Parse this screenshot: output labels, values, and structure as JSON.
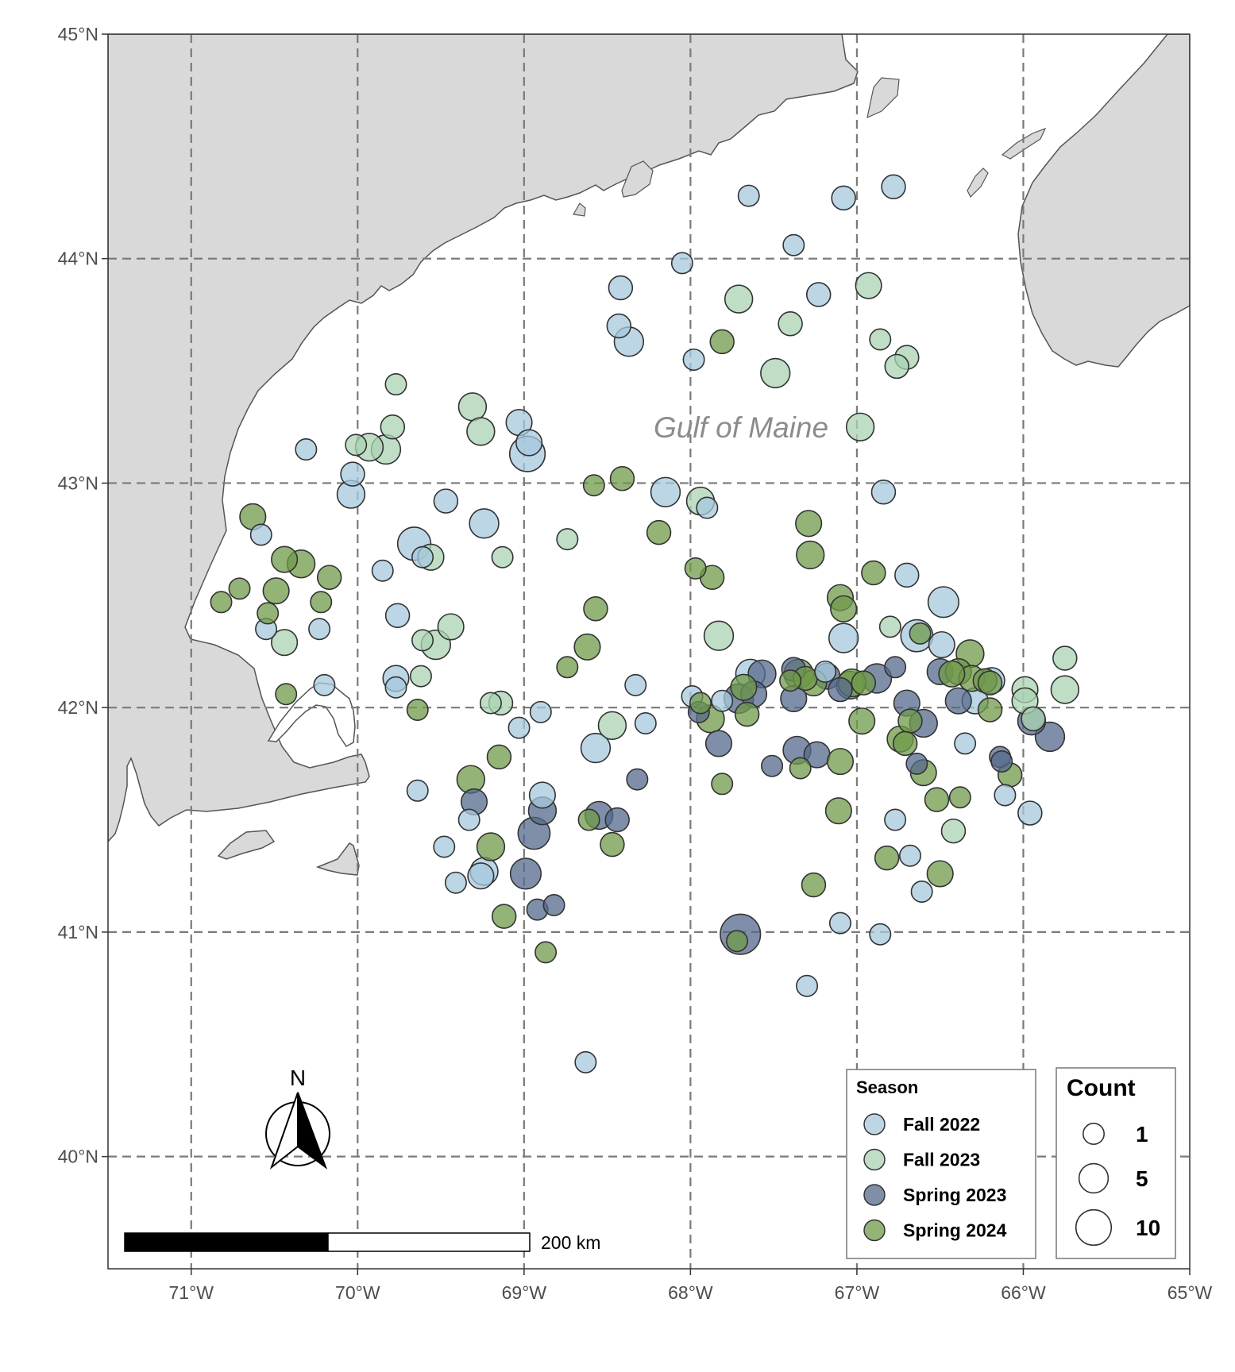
{
  "map": {
    "region_label": "Gulf of Maine",
    "lon_ticks": [
      "71°W",
      "70°W",
      "69°W",
      "68°W",
      "67°W",
      "66°W",
      "65°W"
    ],
    "lat_ticks": [
      "45°N",
      "44°N",
      "43°N",
      "42°N",
      "41°N",
      "40°N"
    ],
    "land_color": "#d9d9d9",
    "north_arrow_label": "N",
    "scale_bar_label": "200 km"
  },
  "legend": {
    "season_title": "Season",
    "seasons": [
      {
        "label": "Fall 2022",
        "color": "#a6c8dd"
      },
      {
        "label": "Fall 2023",
        "color": "#a9d3b2"
      },
      {
        "label": "Spring 2023",
        "color": "#55698c"
      },
      {
        "label": "Spring 2024",
        "color": "#6f9a4a"
      }
    ],
    "count_title": "Count",
    "counts": [
      {
        "label": "1",
        "value": 1
      },
      {
        "label": "5",
        "value": 5
      },
      {
        "label": "10",
        "value": 10
      }
    ]
  },
  "chart_data": {
    "type": "scatter",
    "x_label": "",
    "y_label": "",
    "xlim": [
      -71.5,
      -65.0
    ],
    "ylim": [
      39.5,
      45.0
    ],
    "series": [
      {
        "name": "Fall 2022",
        "points": [
          [
            -67.65,
            44.28,
            1
          ],
          [
            -67.08,
            44.27,
            2
          ],
          [
            -66.78,
            44.32,
            2
          ],
          [
            -67.38,
            44.06,
            1
          ],
          [
            -68.05,
            43.98,
            1
          ],
          [
            -68.42,
            43.87,
            2
          ],
          [
            -67.23,
            43.84,
            2
          ],
          [
            -68.43,
            43.7,
            2
          ],
          [
            -68.37,
            43.63,
            5
          ],
          [
            -67.98,
            43.55,
            1
          ],
          [
            -69.03,
            43.27,
            3
          ],
          [
            -68.98,
            43.13,
            10
          ],
          [
            -68.97,
            43.18,
            3
          ],
          [
            -70.31,
            43.15,
            1
          ],
          [
            -70.03,
            43.04,
            2
          ],
          [
            -70.04,
            42.95,
            4
          ],
          [
            -68.15,
            42.96,
            5
          ],
          [
            -67.9,
            42.89,
            1
          ],
          [
            -69.47,
            42.92,
            2
          ],
          [
            -69.24,
            42.82,
            5
          ],
          [
            -66.84,
            42.96,
            2
          ],
          [
            -69.66,
            42.73,
            8
          ],
          [
            -70.58,
            42.77,
            1
          ],
          [
            -69.85,
            42.61,
            1
          ],
          [
            -69.61,
            42.67,
            1
          ],
          [
            -70.55,
            42.35,
            1
          ],
          [
            -70.23,
            42.35,
            1
          ],
          [
            -69.76,
            42.41,
            2
          ],
          [
            -67.08,
            42.31,
            5
          ],
          [
            -66.64,
            42.32,
            7
          ],
          [
            -66.48,
            42.47,
            6
          ],
          [
            -66.7,
            42.59,
            2
          ],
          [
            -66.49,
            42.28,
            3
          ],
          [
            -67.64,
            42.15,
            5
          ],
          [
            -67.19,
            42.16,
            1
          ],
          [
            -66.29,
            42.03,
            3
          ],
          [
            -66.19,
            42.12,
            3
          ],
          [
            -67.81,
            42.03,
            1
          ],
          [
            -69.77,
            42.13,
            3
          ],
          [
            -70.2,
            42.1,
            1
          ],
          [
            -69.77,
            42.09,
            1
          ],
          [
            -67.99,
            42.05,
            1
          ],
          [
            -68.33,
            42.1,
            1
          ],
          [
            -68.57,
            41.82,
            5
          ],
          [
            -68.9,
            41.98,
            1
          ],
          [
            -69.03,
            41.91,
            1
          ],
          [
            -68.27,
            41.93,
            1
          ],
          [
            -66.35,
            41.84,
            1
          ],
          [
            -69.64,
            41.63,
            1
          ],
          [
            -68.89,
            41.61,
            3
          ],
          [
            -69.33,
            41.5,
            1
          ],
          [
            -69.48,
            41.38,
            1
          ],
          [
            -69.24,
            41.27,
            4
          ],
          [
            -69.26,
            41.25,
            3
          ],
          [
            -69.41,
            41.22,
            1
          ],
          [
            -66.77,
            41.5,
            1
          ],
          [
            -66.68,
            41.34,
            1
          ],
          [
            -66.61,
            41.18,
            1
          ],
          [
            -66.11,
            41.61,
            1
          ],
          [
            -65.96,
            41.53,
            2
          ],
          [
            -67.1,
            41.04,
            1
          ],
          [
            -66.86,
            40.99,
            1
          ],
          [
            -67.3,
            40.76,
            1
          ],
          [
            -68.63,
            40.42,
            1
          ]
        ]
      },
      {
        "name": "Fall 2023",
        "points": [
          [
            -67.71,
            43.82,
            4
          ],
          [
            -66.93,
            43.88,
            3
          ],
          [
            -67.4,
            43.71,
            2
          ],
          [
            -67.49,
            43.49,
            5
          ],
          [
            -66.86,
            43.64,
            1
          ],
          [
            -66.7,
            43.56,
            2
          ],
          [
            -66.76,
            43.52,
            2
          ],
          [
            -66.98,
            43.25,
            4
          ],
          [
            -69.31,
            43.34,
            4
          ],
          [
            -69.26,
            43.23,
            4
          ],
          [
            -69.77,
            43.44,
            1
          ],
          [
            -69.93,
            43.16,
            4
          ],
          [
            -69.79,
            43.25,
            2
          ],
          [
            -69.83,
            43.15,
            5
          ],
          [
            -70.01,
            43.17,
            1
          ],
          [
            -67.94,
            42.92,
            4
          ],
          [
            -69.56,
            42.67,
            3
          ],
          [
            -69.13,
            42.67,
            1
          ],
          [
            -68.74,
            42.75,
            1
          ],
          [
            -70.44,
            42.29,
            3
          ],
          [
            -69.61,
            42.3,
            1
          ],
          [
            -69.53,
            42.28,
            5
          ],
          [
            -69.44,
            42.36,
            3
          ],
          [
            -67.83,
            42.32,
            5
          ],
          [
            -66.8,
            42.36,
            1
          ],
          [
            -65.75,
            42.22,
            2
          ],
          [
            -65.75,
            42.08,
            4
          ],
          [
            -65.99,
            42.08,
            3
          ],
          [
            -65.99,
            42.03,
            3
          ],
          [
            -69.62,
            42.14,
            1
          ],
          [
            -69.2,
            42.02,
            1
          ],
          [
            -69.14,
            42.02,
            2
          ],
          [
            -68.47,
            41.92,
            4
          ],
          [
            -66.42,
            41.45,
            2
          ],
          [
            -65.94,
            41.95,
            2
          ]
        ]
      },
      {
        "name": "Spring 2023",
        "points": [
          [
            -67.57,
            42.15,
            4
          ],
          [
            -67.38,
            42.17,
            2
          ],
          [
            -67.18,
            42.14,
            3
          ],
          [
            -66.88,
            42.13,
            5
          ],
          [
            -66.77,
            42.18,
            1
          ],
          [
            -66.5,
            42.16,
            3
          ],
          [
            -66.39,
            42.03,
            3
          ],
          [
            -66.7,
            42.02,
            3
          ],
          [
            -66.6,
            41.93,
            4
          ],
          [
            -67.71,
            42.04,
            5
          ],
          [
            -67.62,
            42.06,
            3
          ],
          [
            -67.38,
            42.04,
            3
          ],
          [
            -67.1,
            42.08,
            2
          ],
          [
            -67.95,
            41.98,
            1
          ],
          [
            -65.95,
            41.94,
            4
          ],
          [
            -65.84,
            41.87,
            5
          ],
          [
            -66.14,
            41.78,
            1
          ],
          [
            -66.13,
            41.76,
            1
          ],
          [
            -66.64,
            41.75,
            1
          ],
          [
            -67.83,
            41.84,
            3
          ],
          [
            -67.36,
            41.81,
            4
          ],
          [
            -67.24,
            41.79,
            3
          ],
          [
            -67.51,
            41.74,
            1
          ],
          [
            -68.32,
            41.68,
            1
          ],
          [
            -69.3,
            41.58,
            3
          ],
          [
            -68.89,
            41.54,
            4
          ],
          [
            -68.94,
            41.44,
            7
          ],
          [
            -68.55,
            41.52,
            4
          ],
          [
            -68.44,
            41.5,
            2
          ],
          [
            -68.99,
            41.26,
            6
          ],
          [
            -68.92,
            41.1,
            1
          ],
          [
            -68.82,
            41.12,
            1
          ],
          [
            -67.7,
            40.99,
            15
          ]
        ]
      },
      {
        "name": "Spring 2024",
        "points": [
          [
            -67.81,
            43.63,
            2
          ],
          [
            -68.41,
            43.02,
            2
          ],
          [
            -68.58,
            42.99,
            1
          ],
          [
            -68.19,
            42.78,
            2
          ],
          [
            -67.29,
            42.82,
            3
          ],
          [
            -67.28,
            42.68,
            4
          ],
          [
            -70.63,
            42.85,
            3
          ],
          [
            -70.44,
            42.66,
            3
          ],
          [
            -70.34,
            42.64,
            4
          ],
          [
            -70.49,
            42.52,
            3
          ],
          [
            -70.17,
            42.58,
            2
          ],
          [
            -70.71,
            42.53,
            1
          ],
          [
            -70.82,
            42.47,
            1
          ],
          [
            -70.22,
            42.47,
            1
          ],
          [
            -70.54,
            42.42,
            1
          ],
          [
            -67.97,
            42.62,
            1
          ],
          [
            -67.87,
            42.58,
            2
          ],
          [
            -66.9,
            42.6,
            2
          ],
          [
            -68.57,
            42.44,
            2
          ],
          [
            -68.62,
            42.27,
            3
          ],
          [
            -68.74,
            42.18,
            1
          ],
          [
            -67.1,
            42.49,
            3
          ],
          [
            -67.08,
            42.44,
            3
          ],
          [
            -66.62,
            42.33,
            1
          ],
          [
            -66.32,
            42.24,
            4
          ],
          [
            -66.39,
            42.16,
            3
          ],
          [
            -66.31,
            42.13,
            3
          ],
          [
            -66.43,
            42.15,
            3
          ],
          [
            -66.23,
            42.12,
            2
          ],
          [
            -67.35,
            42.15,
            5
          ],
          [
            -67.26,
            42.11,
            3
          ],
          [
            -67.31,
            42.13,
            2
          ],
          [
            -67.4,
            42.12,
            1
          ],
          [
            -67.04,
            42.1,
            4
          ],
          [
            -67.03,
            42.11,
            4
          ],
          [
            -66.96,
            42.11,
            2
          ],
          [
            -67.68,
            42.09,
            3
          ],
          [
            -66.2,
            42.11,
            2
          ],
          [
            -66.2,
            41.99,
            2
          ],
          [
            -67.66,
            41.97,
            2
          ],
          [
            -67.88,
            41.95,
            4
          ],
          [
            -67.94,
            42.02,
            1
          ],
          [
            -69.64,
            41.99,
            1
          ],
          [
            -66.97,
            41.94,
            3
          ],
          [
            -66.68,
            41.94,
            2
          ],
          [
            -66.74,
            41.86,
            3
          ],
          [
            -66.71,
            41.84,
            2
          ],
          [
            -66.6,
            41.71,
            3
          ],
          [
            -66.52,
            41.59,
            2
          ],
          [
            -66.38,
            41.6,
            1
          ],
          [
            -66.08,
            41.7,
            2
          ],
          [
            -67.34,
            41.73,
            1
          ],
          [
            -67.1,
            41.76,
            3
          ],
          [
            -69.15,
            41.78,
            2
          ],
          [
            -69.32,
            41.68,
            4
          ],
          [
            -68.61,
            41.5,
            1
          ],
          [
            -68.47,
            41.39,
            2
          ],
          [
            -69.2,
            41.38,
            4
          ],
          [
            -67.81,
            41.66,
            1
          ],
          [
            -67.11,
            41.54,
            3
          ],
          [
            -66.82,
            41.33,
            2
          ],
          [
            -66.5,
            41.26,
            3
          ],
          [
            -67.26,
            41.21,
            2
          ],
          [
            -69.12,
            41.07,
            2
          ],
          [
            -68.87,
            40.91,
            1
          ],
          [
            -67.72,
            40.96,
            1
          ],
          [
            -70.43,
            42.06,
            1
          ]
        ]
      }
    ]
  }
}
